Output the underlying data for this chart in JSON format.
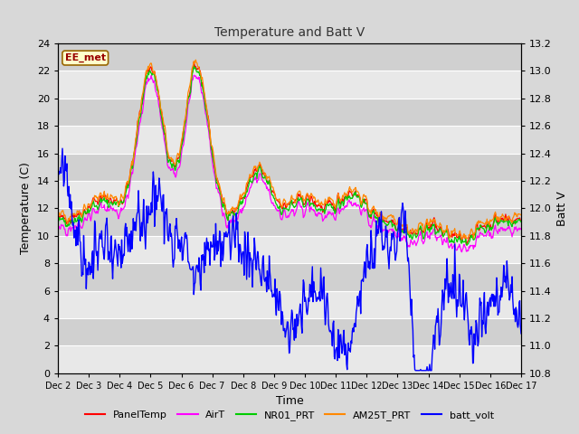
{
  "title": "Temperature and Batt V",
  "xlabel": "Time",
  "ylabel_left": "Temperature (C)",
  "ylabel_right": "Batt V",
  "annotation": "EE_met",
  "ylim_left": [
    0,
    24
  ],
  "ylim_right": [
    10.8,
    13.2
  ],
  "yticks_left": [
    0,
    2,
    4,
    6,
    8,
    10,
    12,
    14,
    16,
    18,
    20,
    22,
    24
  ],
  "yticks_right": [
    10.8,
    11.0,
    11.2,
    11.4,
    11.6,
    11.8,
    12.0,
    12.2,
    12.4,
    12.6,
    12.8,
    13.0,
    13.2
  ],
  "xtick_labels": [
    "Dec 2",
    "Dec 3",
    "Dec 4",
    "Dec 5",
    "Dec 6",
    "Dec 7",
    "Dec 8",
    "Dec 9",
    "Dec 10",
    "Dec 11",
    "Dec 12",
    "Dec 13",
    "Dec 14",
    "Dec 15",
    "Dec 16",
    "Dec 17"
  ],
  "colors": {
    "PanelTemp": "#ff0000",
    "AirT": "#ff00ff",
    "NR01_PRT": "#00cc00",
    "AM25T_PRT": "#ff8800",
    "batt_volt": "#0000ff"
  },
  "legend_labels": [
    "PanelTemp",
    "AirT",
    "NR01_PRT",
    "AM25T_PRT",
    "batt_volt"
  ],
  "fig_bg_color": "#d8d8d8",
  "plot_bg_color": "#e8e8e8",
  "grid_color": "#ffffff",
  "alt_bg_color": "#d0d0d0"
}
